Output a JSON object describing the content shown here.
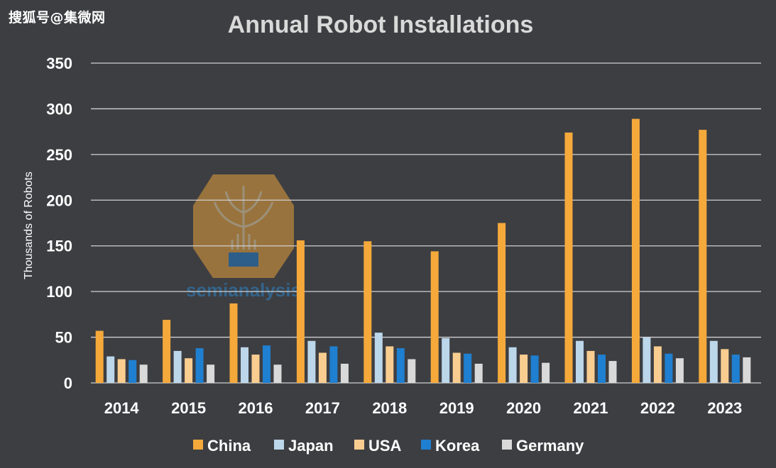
{
  "watermark": "搜狐号@集微网",
  "logo_text": "semianalysis",
  "chart_data": {
    "type": "bar",
    "title": "Annual Robot Installations",
    "xlabel": "",
    "ylabel": "Thousands of Robots",
    "ylim": [
      0,
      350
    ],
    "yticks": [
      0,
      50,
      100,
      150,
      200,
      250,
      300,
      350
    ],
    "grid": true,
    "legend_position": "bottom",
    "categories": [
      "2014",
      "2015",
      "2016",
      "2017",
      "2018",
      "2019",
      "2020",
      "2021",
      "2022",
      "2023"
    ],
    "series": [
      {
        "name": "China",
        "color": "#f5a93a",
        "values": [
          57,
          69,
          87,
          156,
          155,
          144,
          175,
          274,
          289,
          277
        ]
      },
      {
        "name": "Japan",
        "color": "#bcd6ea",
        "values": [
          29,
          35,
          39,
          46,
          55,
          49,
          39,
          46,
          50,
          46
        ]
      },
      {
        "name": "USA",
        "color": "#f9cd90",
        "values": [
          26,
          27,
          31,
          33,
          40,
          33,
          31,
          35,
          40,
          37
        ]
      },
      {
        "name": "Korea",
        "color": "#1f7fd0",
        "values": [
          25,
          38,
          41,
          40,
          38,
          32,
          30,
          31,
          32,
          31
        ]
      },
      {
        "name": "Germany",
        "color": "#d9d9d9",
        "values": [
          20,
          20,
          20,
          21,
          26,
          21,
          22,
          24,
          27,
          28
        ]
      }
    ]
  }
}
